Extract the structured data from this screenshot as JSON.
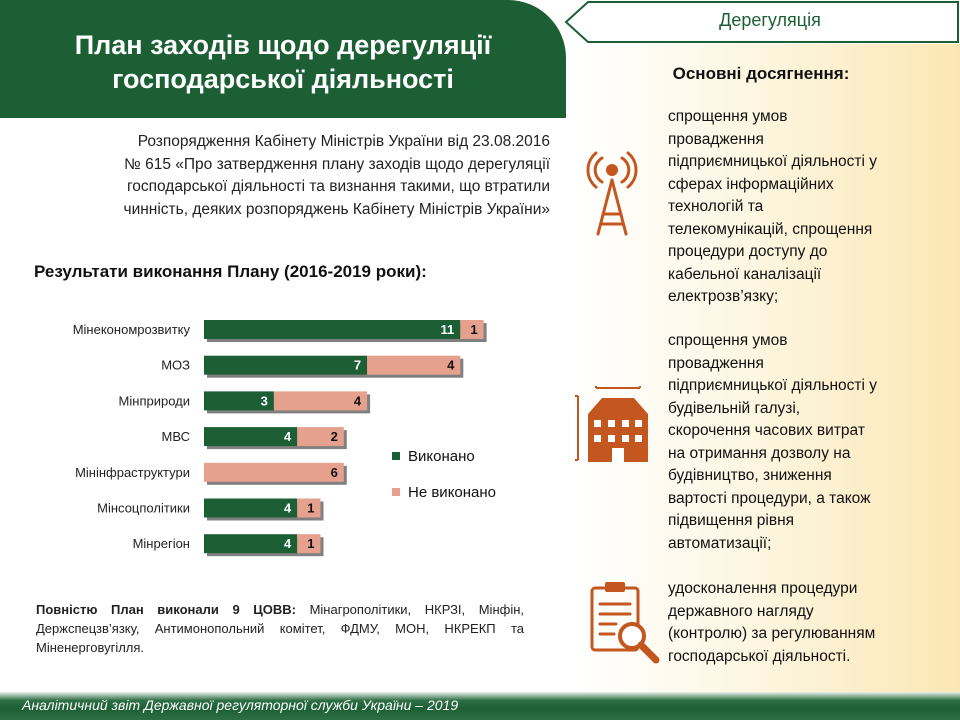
{
  "header": {
    "title_line1": "План заходів щодо дерегуляції",
    "title_line2": "господарської діяльності",
    "tag": "Дерегуляція"
  },
  "decree": {
    "line1": "Розпорядження Кабінету Міністрів України від 23.08.2016",
    "line2": "№ 615 «Про затвердження плану  заходів щодо дерегуляції",
    "line3": "господарської діяльності та визнання такими, що втратили",
    "line4": "чинність, деяких розпоряджень Кабінету Міністрів України»"
  },
  "results_title": "Результати  виконання Плану  (2016-2019 роки):",
  "chart_data": {
    "type": "bar",
    "orientation": "horizontal",
    "stacked": true,
    "categories": [
      "Мінекономрозвитку",
      "МОЗ",
      "Мінприроди",
      "МВС",
      "Мінінфраструктури",
      "Мінсоцполітики",
      "Мінрегіон"
    ],
    "series": [
      {
        "name": "Виконано",
        "values": [
          11,
          7,
          3,
          4,
          0,
          4,
          4
        ],
        "color": "#1d5f35"
      },
      {
        "name": "Не виконано",
        "values": [
          1,
          4,
          4,
          2,
          6,
          1,
          1
        ],
        "color": "#e6a08e"
      }
    ],
    "legend_position": "right",
    "grid": false
  },
  "summary": {
    "bold": "Повністю План виконали 9 ЦОВВ:",
    "rest": " Мінагрополітики, НКРЗІ, Мінфін, Держспецзв’язку, Антимонопольний комітет, ФДМУ, МОН, НКРЕКП та Міненерговугілля."
  },
  "achievements": {
    "title": "Основні досягнення:",
    "item1": [
      "спрощення умов",
      "провадження",
      "підприємницької діяльності у",
      "сферах інформаційних",
      "технологій та",
      "телекомунікацій,  спрощення",
      "процедури доступу до",
      "кабельної каналізації",
      "електрозв’язку;"
    ],
    "item2": [
      "спрощення умов",
      "провадження",
      "підприємницької діяльності у",
      "будівельній галузі,",
      "скорочення часових витрат",
      "на отримання дозволу на",
      "будівництво, зниження",
      "вартості процедури, а також",
      "підвищення  рівня",
      "автоматизації;"
    ],
    "item3": [
      "удосконалення процедури",
      "державного нагляду",
      "(контролю) за регулюванням",
      "господарської діяльності."
    ]
  },
  "icons": [
    "antenna-tower-icon",
    "building-icon",
    "clipboard-magnifier-icon"
  ],
  "footer": "Аналітичний звіт Державної регуляторної служби України – 2019"
}
